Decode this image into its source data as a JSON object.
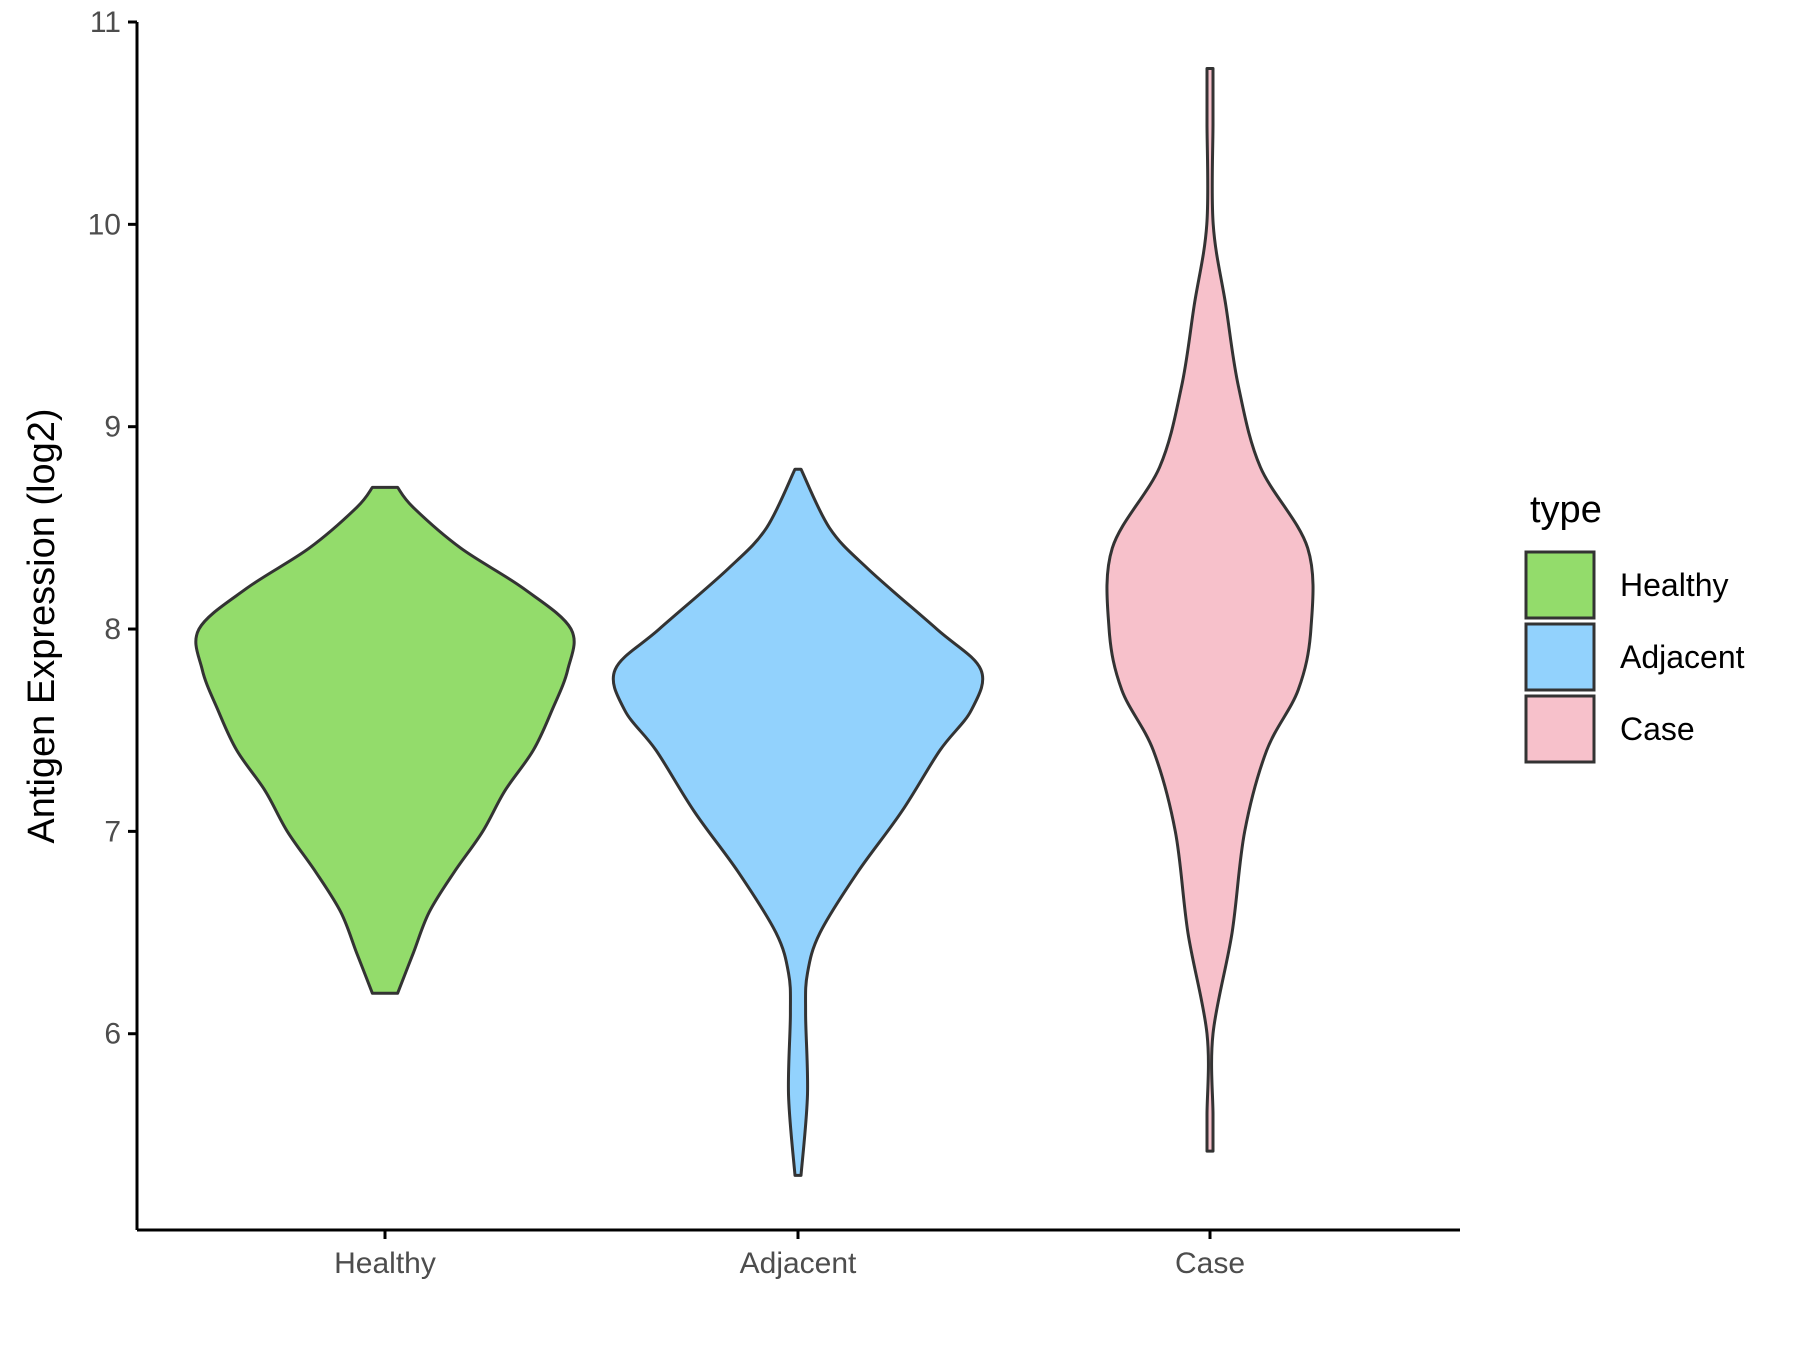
{
  "chart_data": {
    "type": "violin",
    "ylabel": "Antigen Expression (log2)",
    "xlabel": "",
    "categories": [
      "Healthy",
      "Adjacent",
      "Case"
    ],
    "yticks": [
      6,
      7,
      8,
      9,
      10,
      11
    ],
    "ylim": [
      5.03,
      11.0
    ],
    "grid": false,
    "legend": {
      "title": "type",
      "position": "right",
      "entries": [
        "Healthy",
        "Adjacent",
        "Case"
      ]
    },
    "series": [
      {
        "name": "Healthy",
        "color": "#93dc6b",
        "min": 6.2,
        "max": 8.7,
        "density": [
          [
            6.2,
            0.02
          ],
          [
            6.4,
            0.045
          ],
          [
            6.6,
            0.07
          ],
          [
            6.8,
            0.11
          ],
          [
            7.0,
            0.155
          ],
          [
            7.2,
            0.19
          ],
          [
            7.4,
            0.235
          ],
          [
            7.6,
            0.265
          ],
          [
            7.8,
            0.29
          ],
          [
            8.0,
            0.295
          ],
          [
            8.2,
            0.22
          ],
          [
            8.4,
            0.12
          ],
          [
            8.6,
            0.045
          ],
          [
            8.7,
            0.02
          ]
        ]
      },
      {
        "name": "Adjacent",
        "color": "#92d2fd",
        "min": 5.3,
        "max": 8.79,
        "density": [
          [
            5.3,
            0.004
          ],
          [
            5.7,
            0.015
          ],
          [
            6.1,
            0.012
          ],
          [
            6.3,
            0.015
          ],
          [
            6.5,
            0.035
          ],
          [
            6.8,
            0.095
          ],
          [
            7.1,
            0.165
          ],
          [
            7.4,
            0.225
          ],
          [
            7.6,
            0.275
          ],
          [
            7.8,
            0.29
          ],
          [
            8.0,
            0.22
          ],
          [
            8.3,
            0.11
          ],
          [
            8.5,
            0.05
          ],
          [
            8.79,
            0.003
          ]
        ]
      },
      {
        "name": "Case",
        "color": "#f7c1cb",
        "min": 5.42,
        "max": 10.77,
        "density": [
          [
            5.42,
            0.0
          ],
          [
            5.6,
            0.0
          ],
          [
            6.0,
            0.0
          ],
          [
            6.5,
            0.035
          ],
          [
            7.0,
            0.055
          ],
          [
            7.4,
            0.09
          ],
          [
            7.7,
            0.14
          ],
          [
            8.0,
            0.16
          ],
          [
            8.4,
            0.155
          ],
          [
            8.8,
            0.08
          ],
          [
            9.2,
            0.045
          ],
          [
            9.6,
            0.025
          ],
          [
            10.0,
            0.005
          ],
          [
            10.5,
            0.0
          ],
          [
            10.77,
            0.0
          ]
        ]
      }
    ]
  }
}
